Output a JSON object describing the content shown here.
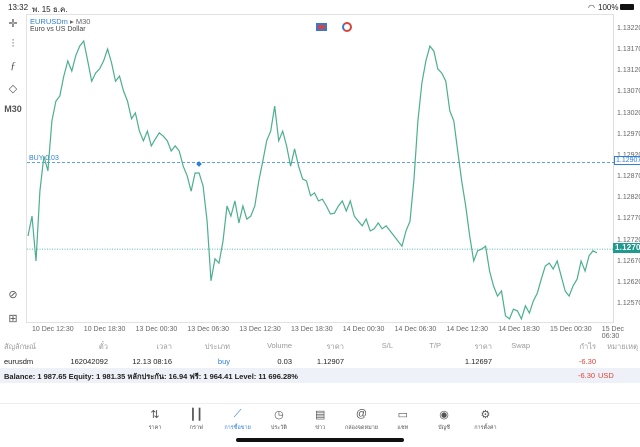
{
  "status_bar": {
    "time": "13:32",
    "date": "พ. 15 ธ.ค.",
    "battery": "100%"
  },
  "chart": {
    "symbol": "EURUSDm",
    "timeframe": "M30",
    "description": "Euro vs US Dollar",
    "toolbar": [
      {
        "icon": "crosshair-icon"
      },
      {
        "icon": "indicators-icon"
      },
      {
        "icon": "function-icon"
      },
      {
        "icon": "objects-icon"
      },
      {
        "label": "M30"
      },
      {
        "icon": "zoom-icon"
      },
      {
        "icon": "add-icon"
      }
    ],
    "buy_label": "BUY 0.03",
    "buy_price_label": "1.12907",
    "current_price_label": "1.12702",
    "colors": {
      "line": "#4caf8f",
      "buy": "#2f7fd6",
      "current": "#26a69a"
    }
  },
  "chart_data": {
    "type": "line",
    "ylim": [
      1.1252,
      1.1324
    ],
    "yticks": [
      "1.13220",
      "1.13170",
      "1.13120",
      "1.13070",
      "1.13020",
      "1.12970",
      "1.12920",
      "1.12870",
      "1.12820",
      "1.12770",
      "1.12720",
      "1.12670",
      "1.12620",
      "1.12570"
    ],
    "xticks": [
      "10 Dec 12:30",
      "10 Dec 18:30",
      "13 Dec 00:30",
      "13 Dec 06:30",
      "13 Dec 12:30",
      "13 Dec 18:30",
      "14 Dec 00:30",
      "14 Dec 06:30",
      "14 Dec 12:30",
      "14 Dec 18:30",
      "15 Dec 00:30",
      "15 Dec 06:30"
    ],
    "values": [
      1.12733,
      1.1278,
      1.12674,
      1.12839,
      1.12922,
      1.12887,
      1.13005,
      1.13052,
      1.13064,
      1.13111,
      1.13147,
      1.13123,
      1.13159,
      1.13182,
      1.13194,
      1.13147,
      1.13099,
      1.13118,
      1.13128,
      1.13147,
      1.13175,
      1.13142,
      1.13099,
      1.13111,
      1.13076,
      1.13052,
      1.1301,
      1.13024,
      1.12981,
      1.12958,
      1.12981,
      1.12946,
      1.12962,
      1.12977,
      1.12969,
      1.12958,
      1.12934,
      1.12946,
      1.12934,
      1.12898,
      1.12875,
      1.12839,
      1.12882,
      1.12882,
      1.12851,
      1.12768,
      1.12627,
      1.12679,
      1.12669,
      1.12721,
      1.12804,
      1.1278,
      1.12816,
      1.12764,
      1.12804,
      1.12773,
      1.1278,
      1.12804,
      1.12863,
      1.1291,
      1.12958,
      1.12981,
      1.1304,
      1.12958,
      1.12981,
      1.12946,
      1.12898,
      1.12939,
      1.12898,
      1.12868,
      1.12863,
      1.12828,
      1.12835,
      1.12816,
      1.1282,
      1.12804,
      1.12785,
      1.12787,
      1.12804,
      1.12816,
      1.12792,
      1.12816,
      1.1278,
      1.12768,
      1.12757,
      1.12773,
      1.12745,
      1.1275,
      1.12764,
      1.1275,
      1.12757,
      1.12745,
      1.12733,
      1.12721,
      1.12709,
      1.12745,
      1.12768,
      1.12868,
      1.13005,
      1.13095,
      1.13147,
      1.13182,
      1.1317,
      1.13128,
      1.13118,
      1.13099,
      1.13029,
      1.13005,
      1.12934,
      1.12863,
      1.12804,
      1.12733,
      1.12674,
      1.12698,
      1.12702,
      1.12709,
      1.1265,
      1.12615,
      1.12591,
      1.12603,
      1.12544,
      1.12537,
      1.1256,
      1.12556,
      1.12537,
      1.12568,
      1.12551,
      1.12579,
      1.12598,
      1.12631,
      1.12662,
      1.12669,
      1.12655,
      1.12674,
      1.12638,
      1.12603,
      1.12591,
      1.12615,
      1.12631,
      1.12674,
      1.1265,
      1.12686,
      1.12698,
      1.12693
    ],
    "buy_level": 1.12907,
    "current_level": 1.12702,
    "grid": false
  },
  "table": {
    "headers": [
      "สัญลักษณ์",
      "ตั๋ว",
      "เวลา",
      "ประเภท",
      "Volume",
      "ราคา",
      "S/L",
      "T/P",
      "ราคา",
      "Swap",
      "กำไร",
      "หมายเหตุ"
    ],
    "row": [
      "eurusdm",
      "162042092",
      "12.13 08:16",
      "buy",
      "0.03",
      "1.12907",
      "",
      "",
      "1.12697",
      "",
      "-6.30",
      ""
    ]
  },
  "balance": {
    "text": "Balance: 1 987.65 Equity: 1 981.35 หลักประกัน: 16.94 ฟรี: 1 964.41 Level: 11 696.28%",
    "profit": "-6.30",
    "currency": "USD"
  },
  "nav": [
    {
      "label": "ราคา",
      "icon": "quotes-icon"
    },
    {
      "label": "กราฟ",
      "icon": "chart-icon"
    },
    {
      "label": "การซื้อขาย",
      "icon": "trade-icon",
      "active": true
    },
    {
      "label": "ประวัติ",
      "icon": "history-icon"
    },
    {
      "label": "ข่าว",
      "icon": "news-icon"
    },
    {
      "label": "กล่องจดหมาย",
      "icon": "mailbox-icon"
    },
    {
      "label": "แชท",
      "icon": "chat-icon"
    },
    {
      "label": "บัญชี",
      "icon": "account-icon"
    },
    {
      "label": "การตั้งค่า",
      "icon": "settings-icon"
    }
  ]
}
